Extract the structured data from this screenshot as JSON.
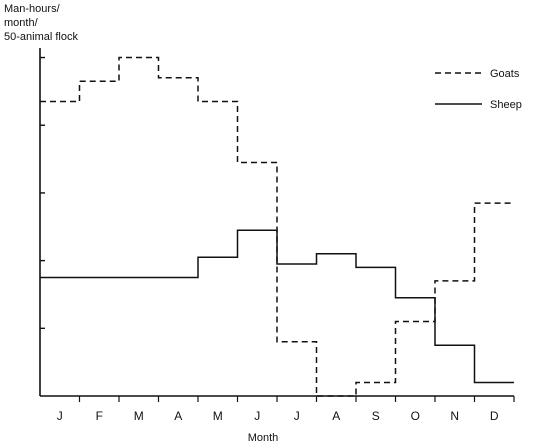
{
  "chart_data": {
    "type": "line",
    "step": true,
    "ylabel_lines": [
      "Man-hours/",
      "month/",
      "50-animal flock"
    ],
    "xlabel": "Month",
    "categories": [
      "J",
      "F",
      "M",
      "A",
      "M",
      "J",
      "J",
      "A",
      "S",
      "O",
      "N",
      "D"
    ],
    "ylim": [
      0,
      5.2
    ],
    "yticks": [
      0,
      1,
      2,
      3,
      4,
      5
    ],
    "y_tick_labels_shown": false,
    "grid": false,
    "legend_position": "top-right",
    "series": [
      {
        "name": "Goats",
        "style": "dashed",
        "values": [
          4.35,
          4.65,
          5.0,
          4.7,
          4.35,
          3.45,
          0.8,
          0.0,
          0.2,
          1.1,
          1.7,
          2.85
        ]
      },
      {
        "name": "Sheep",
        "style": "solid",
        "values": [
          1.75,
          1.75,
          1.75,
          1.75,
          2.05,
          2.45,
          1.95,
          2.1,
          1.9,
          1.45,
          0.75,
          0.2
        ]
      }
    ]
  }
}
